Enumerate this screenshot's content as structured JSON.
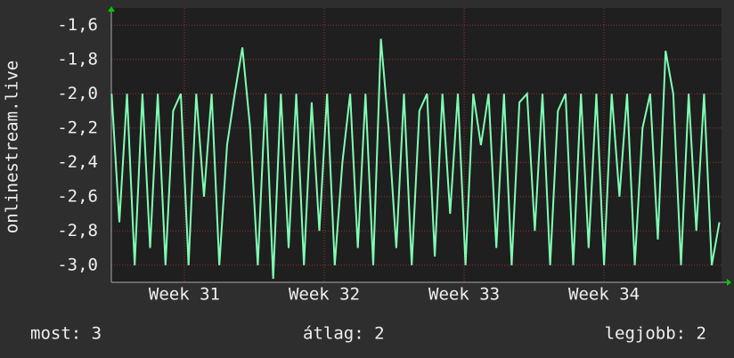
{
  "chart_data": {
    "type": "line",
    "y_label": "onlinestream.live",
    "x": [
      30.48,
      30.535,
      30.59,
      30.645,
      30.7,
      30.755,
      30.81,
      30.865,
      30.92,
      30.975,
      31.03,
      31.085,
      31.14,
      31.195,
      31.25,
      31.305,
      31.36,
      31.415,
      31.47,
      31.525,
      31.58,
      31.635,
      31.69,
      31.745,
      31.8,
      31.855,
      31.91,
      31.965,
      32.02,
      32.075,
      32.13,
      32.185,
      32.24,
      32.295,
      32.35,
      32.405,
      32.46,
      32.515,
      32.57,
      32.625,
      32.68,
      32.735,
      32.79,
      32.845,
      32.9,
      32.955,
      33.01,
      33.065,
      33.12,
      33.175,
      33.23,
      33.285,
      33.34,
      33.395,
      33.45,
      33.505,
      33.56,
      33.615,
      33.67,
      33.725,
      33.78,
      33.835,
      33.89,
      33.945,
      34.0,
      34.055,
      34.11,
      34.165,
      34.22,
      34.275,
      34.33,
      34.385,
      34.44,
      34.495,
      34.55,
      34.605,
      34.66,
      34.715,
      34.77,
      34.825
    ],
    "series": [
      {
        "color": "#80ffb4",
        "values": [
          -2.0,
          -2.75,
          -2.0,
          -3.0,
          -2.0,
          -2.9,
          -2.0,
          -3.0,
          -2.1,
          -2.0,
          -3.0,
          -2.0,
          -2.6,
          -2.0,
          -3.0,
          -2.3,
          -2.0,
          -1.73,
          -2.2,
          -3.0,
          -2.0,
          -3.08,
          -2.0,
          -2.9,
          -2.0,
          -3.0,
          -2.05,
          -2.8,
          -2.0,
          -3.0,
          -2.4,
          -2.0,
          -2.9,
          -2.0,
          -3.0,
          -1.68,
          -2.2,
          -2.9,
          -2.0,
          -3.0,
          -2.1,
          -2.0,
          -2.95,
          -2.0,
          -2.7,
          -2.0,
          -3.0,
          -2.0,
          -2.3,
          -2.0,
          -2.9,
          -2.0,
          -3.0,
          -2.05,
          -2.0,
          -2.8,
          -2.0,
          -3.0,
          -2.1,
          -2.0,
          -3.0,
          -2.0,
          -2.9,
          -2.0,
          -3.0,
          -2.0,
          -2.6,
          -2.0,
          -3.0,
          -2.2,
          -2.0,
          -2.85,
          -1.75,
          -2.0,
          -3.0,
          -2.0,
          -2.8,
          -2.0,
          -3.0,
          -2.75
        ]
      }
    ],
    "xlim": [
      30.478,
      34.84
    ],
    "xticks": [
      {
        "value": 31,
        "label": "Week 31"
      },
      {
        "value": 32,
        "label": "Week 32"
      },
      {
        "value": 33,
        "label": "Week 33"
      },
      {
        "value": 34,
        "label": "Week 34"
      }
    ],
    "ylim": [
      -3.1,
      -1.5
    ],
    "yticks": [
      {
        "value": -3.0,
        "label": "-3,0"
      },
      {
        "value": -2.8,
        "label": "-2,8"
      },
      {
        "value": -2.6,
        "label": "-2,6"
      },
      {
        "value": -2.4,
        "label": "-2,4"
      },
      {
        "value": -2.2,
        "label": "-2,2"
      },
      {
        "value": -2.0,
        "label": "-2,0"
      },
      {
        "value": -1.8,
        "label": "-1,8"
      },
      {
        "value": -1.6,
        "label": "-1,6"
      }
    ],
    "grid": true,
    "footer": [
      "most: 3",
      "átlag: 2",
      "legjobb: 2"
    ]
  }
}
